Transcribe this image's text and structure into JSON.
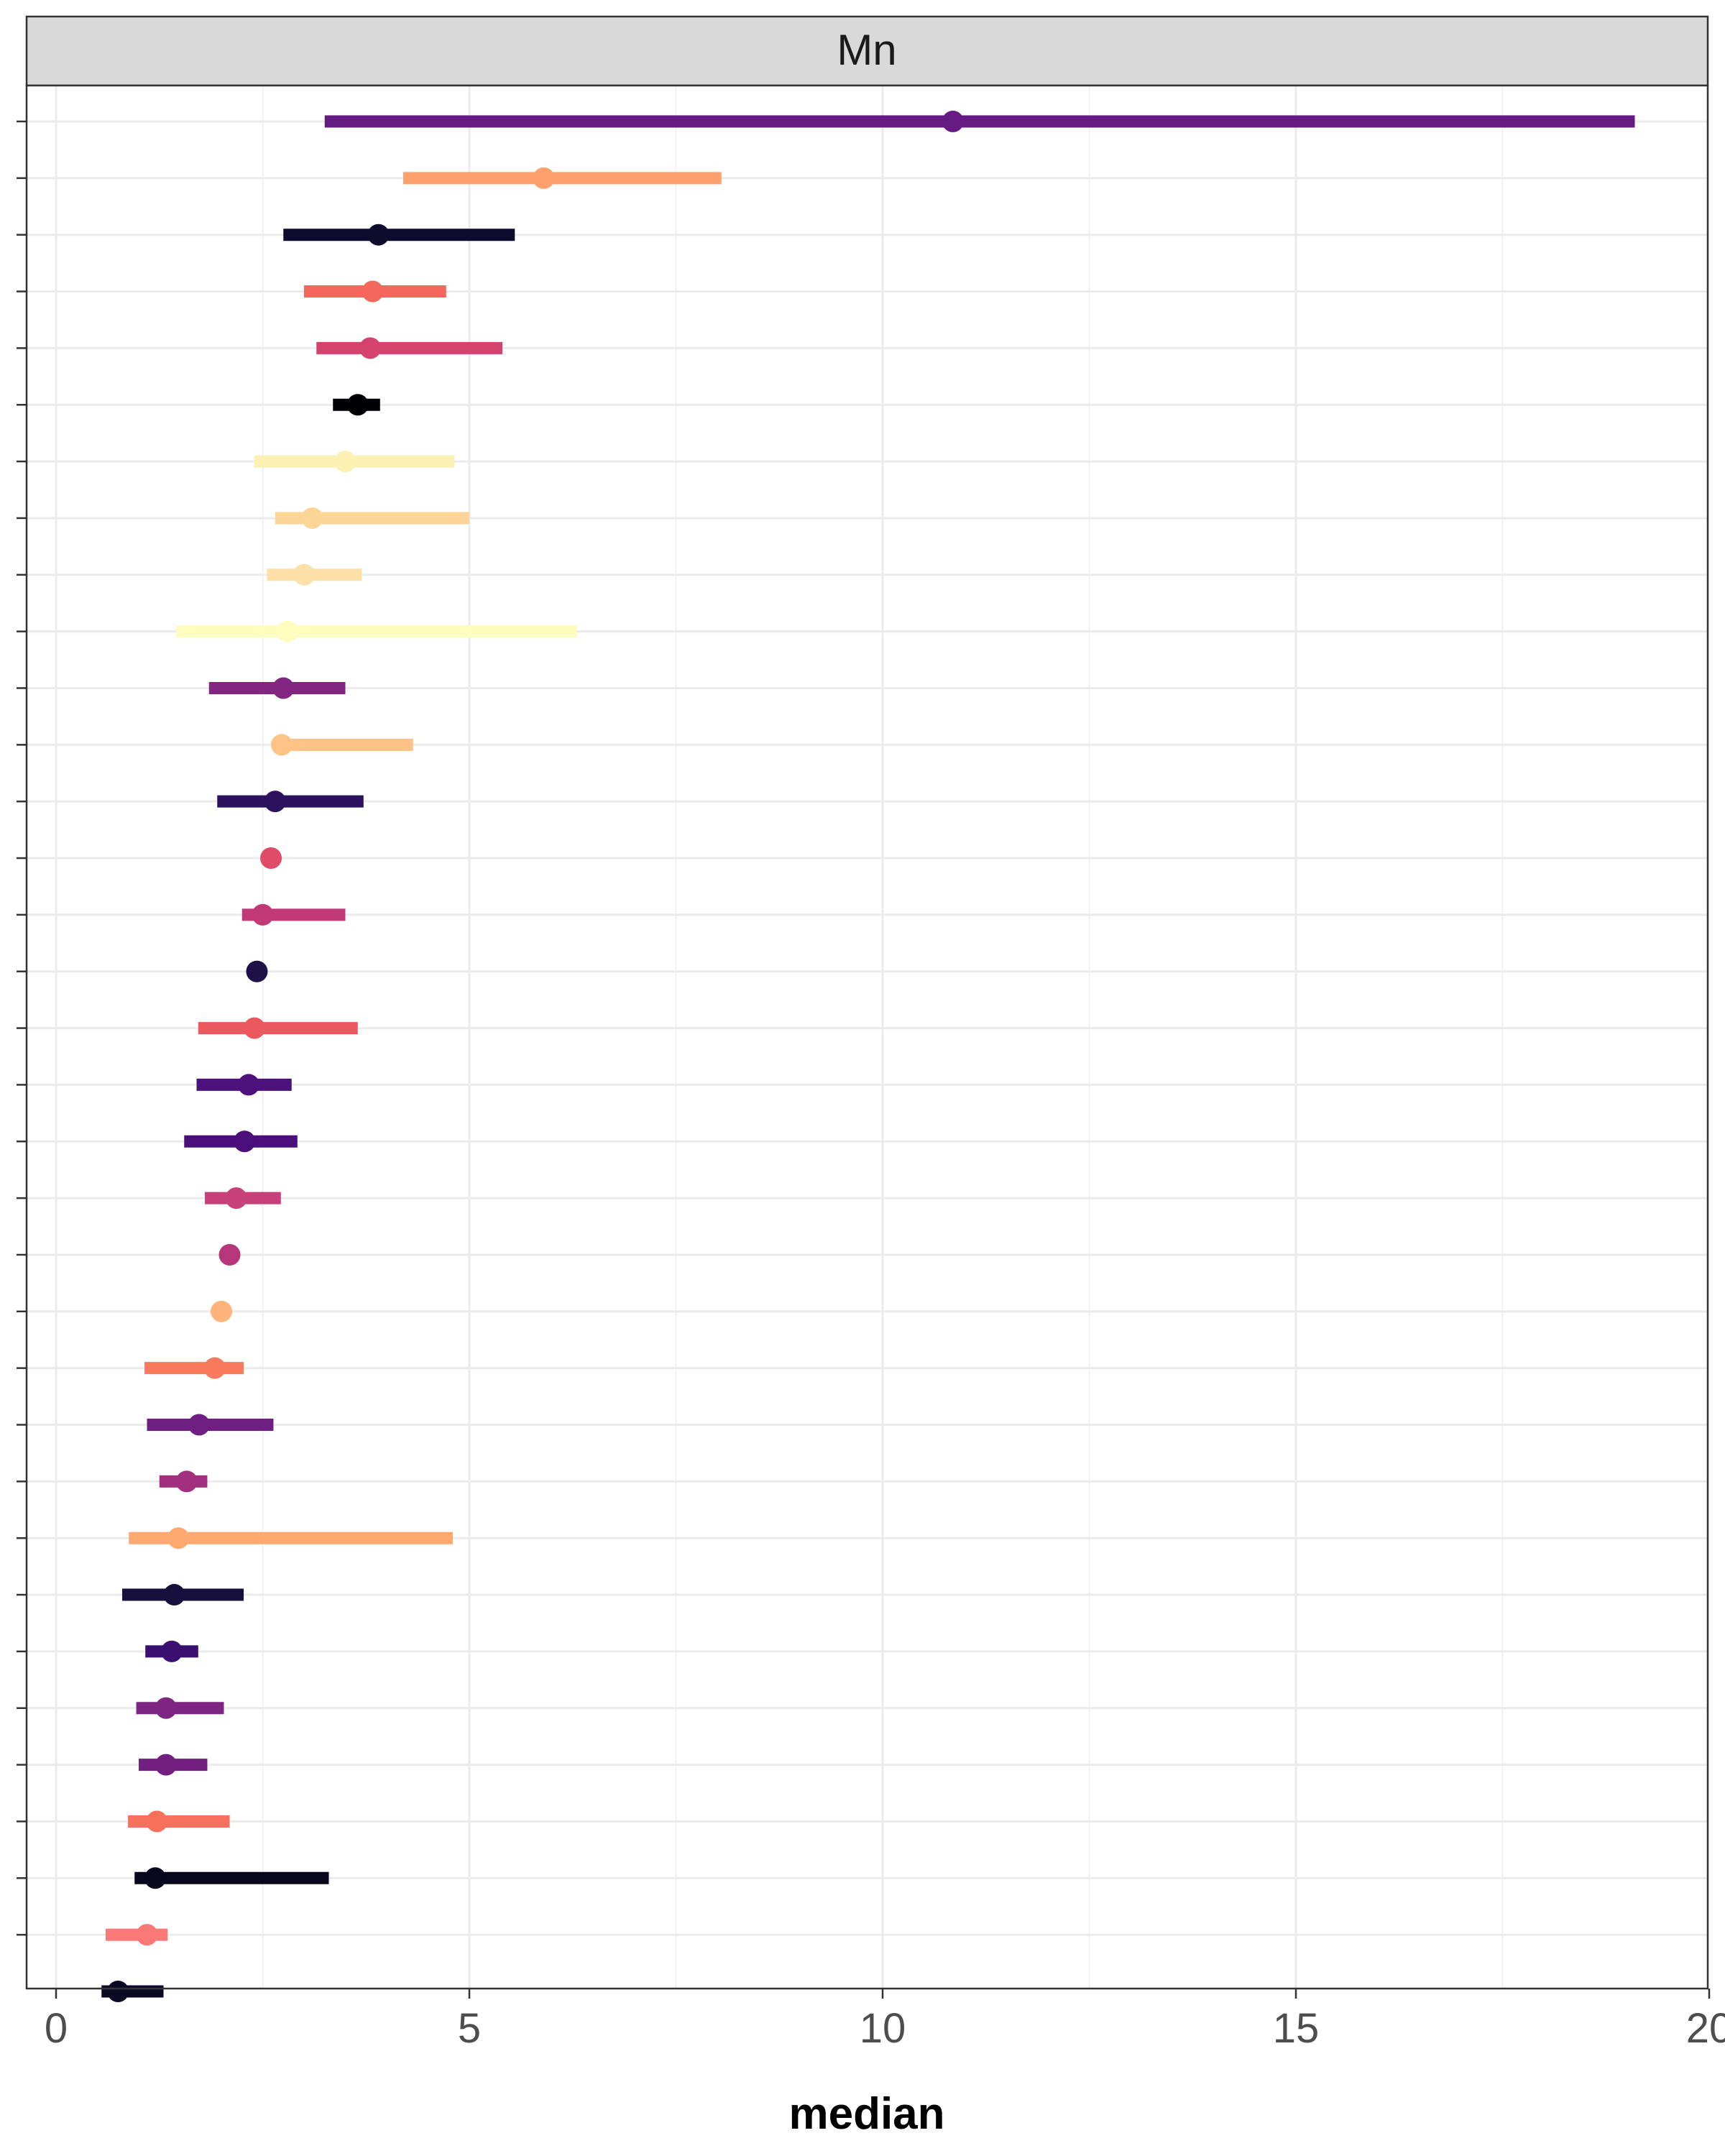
{
  "chart_data": {
    "type": "scatter",
    "style": "point-range (median with interval)",
    "facet_label": "Mn",
    "xlabel": "median",
    "ylabel": "",
    "xlim": [
      -0.35,
      20
    ],
    "x_ticks": [
      0,
      5,
      10,
      15,
      20
    ],
    "x_tick_labels": [
      "0",
      "5",
      "10",
      "15",
      "20"
    ],
    "grid": true,
    "legend": "none",
    "points": [
      {
        "median": 10.85,
        "low": 3.25,
        "high": 19.1,
        "color": "#641A80"
      },
      {
        "median": 5.9,
        "low": 4.2,
        "high": 8.05,
        "color": "#FEA06E"
      },
      {
        "median": 3.9,
        "low": 2.75,
        "high": 5.55,
        "color": "#0F0B2C"
      },
      {
        "median": 3.83,
        "low": 3.0,
        "high": 4.72,
        "color": "#F4675C"
      },
      {
        "median": 3.8,
        "low": 3.15,
        "high": 5.4,
        "color": "#D3436E"
      },
      {
        "median": 3.65,
        "low": 3.35,
        "high": 3.92,
        "color": "#000004"
      },
      {
        "median": 3.5,
        "low": 2.4,
        "high": 4.82,
        "color": "#FCF0B3"
      },
      {
        "median": 3.1,
        "low": 2.65,
        "high": 5.0,
        "color": "#FDD597"
      },
      {
        "median": 3.0,
        "low": 2.55,
        "high": 3.7,
        "color": "#FDE0A8"
      },
      {
        "median": 2.8,
        "low": 1.45,
        "high": 6.3,
        "color": "#FCFDBF"
      },
      {
        "median": 2.75,
        "low": 1.85,
        "high": 3.5,
        "color": "#822681"
      },
      {
        "median": 2.73,
        "low": 2.7,
        "high": 4.32,
        "color": "#FEC286"
      },
      {
        "median": 2.65,
        "low": 1.95,
        "high": 3.72,
        "color": "#2C115F"
      },
      {
        "median": 2.6,
        "low": 2.6,
        "high": 2.6,
        "color": "#E04C67"
      },
      {
        "median": 2.5,
        "low": 2.25,
        "high": 3.5,
        "color": "#C13A75"
      },
      {
        "median": 2.43,
        "low": 2.43,
        "high": 2.43,
        "color": "#1D1147"
      },
      {
        "median": 2.4,
        "low": 1.72,
        "high": 3.65,
        "color": "#EC5860"
      },
      {
        "median": 2.33,
        "low": 1.7,
        "high": 2.85,
        "color": "#4D117B"
      },
      {
        "median": 2.28,
        "low": 1.55,
        "high": 2.92,
        "color": "#4A0F7A"
      },
      {
        "median": 2.18,
        "low": 1.8,
        "high": 2.72,
        "color": "#C8407A"
      },
      {
        "median": 2.1,
        "low": 2.1,
        "high": 2.1,
        "color": "#B5367A"
      },
      {
        "median": 2.0,
        "low": 2.0,
        "high": 2.0,
        "color": "#FEB47B"
      },
      {
        "median": 1.92,
        "low": 1.07,
        "high": 2.27,
        "color": "#F9795D"
      },
      {
        "median": 1.73,
        "low": 1.1,
        "high": 2.63,
        "color": "#6F1F81"
      },
      {
        "median": 1.58,
        "low": 1.25,
        "high": 1.83,
        "color": "#A3307E"
      },
      {
        "median": 1.48,
        "low": 0.88,
        "high": 4.8,
        "color": "#FEA872"
      },
      {
        "median": 1.43,
        "low": 0.8,
        "high": 2.27,
        "color": "#170F3C"
      },
      {
        "median": 1.4,
        "low": 1.08,
        "high": 1.72,
        "color": "#3B0F70"
      },
      {
        "median": 1.33,
        "low": 0.97,
        "high": 2.03,
        "color": "#7E2482"
      },
      {
        "median": 1.33,
        "low": 1.0,
        "high": 1.83,
        "color": "#721F81"
      },
      {
        "median": 1.22,
        "low": 0.87,
        "high": 2.1,
        "color": "#F7705C"
      },
      {
        "median": 1.2,
        "low": 0.95,
        "high": 3.3,
        "color": "#08071D"
      },
      {
        "median": 1.1,
        "low": 0.6,
        "high": 1.35,
        "color": "#FA7876"
      },
      {
        "median": 0.75,
        "low": 0.55,
        "high": 1.3,
        "color": "#0B0924"
      }
    ]
  }
}
